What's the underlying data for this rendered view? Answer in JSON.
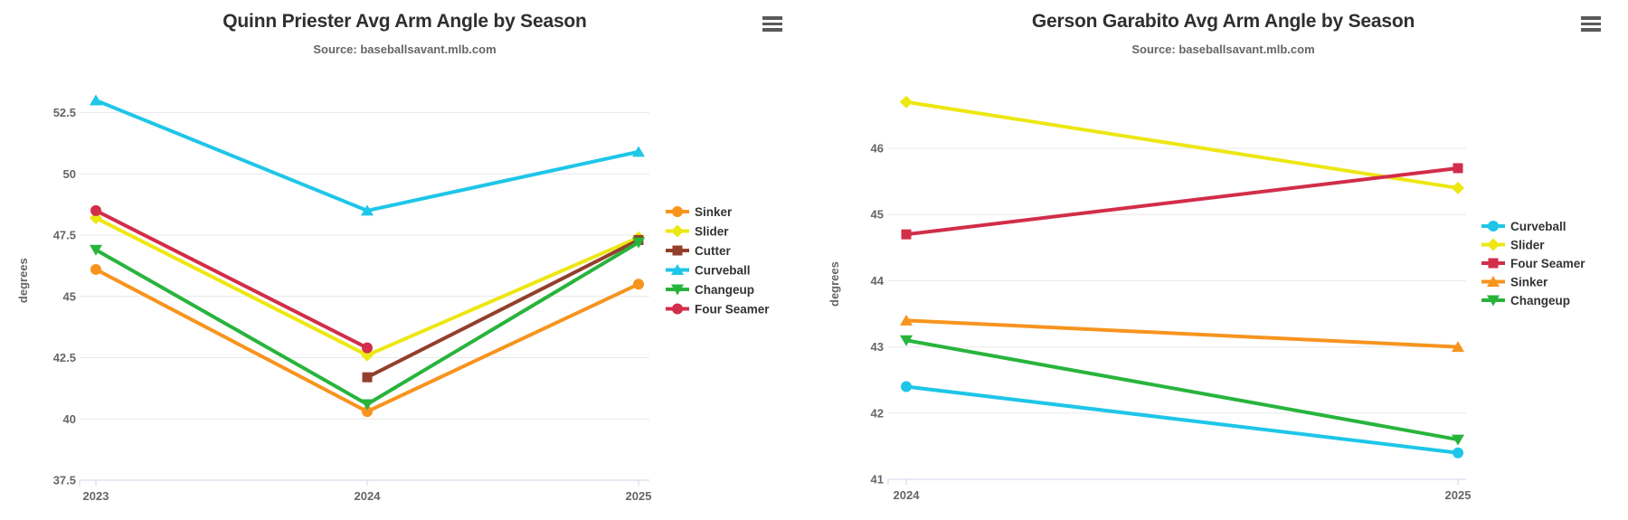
{
  "chart_data": [
    {
      "type": "line",
      "title": "Quinn Priester Avg Arm Angle by Season",
      "subtitle": "Source: baseballsavant.mlb.com",
      "ylabel": "degrees",
      "categories": [
        "2023",
        "2024",
        "2025"
      ],
      "yticks": [
        37.5,
        40,
        42.5,
        45,
        47.5,
        50,
        52.5
      ],
      "ylim": [
        37.5,
        53.8
      ],
      "grid": "horizontal",
      "legend_position": "right-middle",
      "axis_line_color": "#ccd6eb",
      "grid_color": "#e8e8e8",
      "series": [
        {
          "name": "Sinker",
          "color": "#F7941E",
          "marker": "circle",
          "values": [
            46.1,
            40.3,
            45.5
          ]
        },
        {
          "name": "Slider",
          "color": "#EDE712",
          "marker": "diamond",
          "values": [
            48.2,
            42.6,
            47.4
          ]
        },
        {
          "name": "Cutter",
          "color": "#933F2C",
          "marker": "square",
          "values": [
            null,
            41.7,
            47.3
          ]
        },
        {
          "name": "Curveball",
          "color": "#1EC6E8",
          "marker": "triangle-up",
          "values": [
            53.0,
            48.5,
            50.9
          ]
        },
        {
          "name": "Changeup",
          "color": "#28B43C",
          "marker": "triangle-down",
          "values": [
            46.9,
            40.6,
            47.2
          ]
        },
        {
          "name": "Four Seamer",
          "color": "#D22D49",
          "marker": "circle",
          "values": [
            48.5,
            42.9,
            null
          ]
        }
      ]
    },
    {
      "type": "line",
      "title": "Gerson Garabito Avg Arm Angle by Season",
      "subtitle": "Source: baseballsavant.mlb.com",
      "ylabel": "degrees",
      "categories": [
        "2024",
        "2025"
      ],
      "yticks": [
        41,
        42,
        43,
        44,
        45,
        46
      ],
      "ylim": [
        41,
        46.9
      ],
      "grid": "horizontal",
      "legend_position": "right-middle",
      "axis_line_color": "#ccd6eb",
      "grid_color": "#e8e8e8",
      "series": [
        {
          "name": "Curveball",
          "color": "#1EC6E8",
          "marker": "circle",
          "values": [
            42.4,
            41.4
          ]
        },
        {
          "name": "Slider",
          "color": "#EDE712",
          "marker": "diamond",
          "values": [
            46.7,
            45.4
          ]
        },
        {
          "name": "Four Seamer",
          "color": "#D22D49",
          "marker": "square",
          "values": [
            44.7,
            45.7
          ]
        },
        {
          "name": "Sinker",
          "color": "#F7941E",
          "marker": "triangle-up",
          "values": [
            43.4,
            43.0
          ]
        },
        {
          "name": "Changeup",
          "color": "#28B43C",
          "marker": "triangle-down",
          "values": [
            43.1,
            41.6
          ]
        }
      ]
    }
  ]
}
